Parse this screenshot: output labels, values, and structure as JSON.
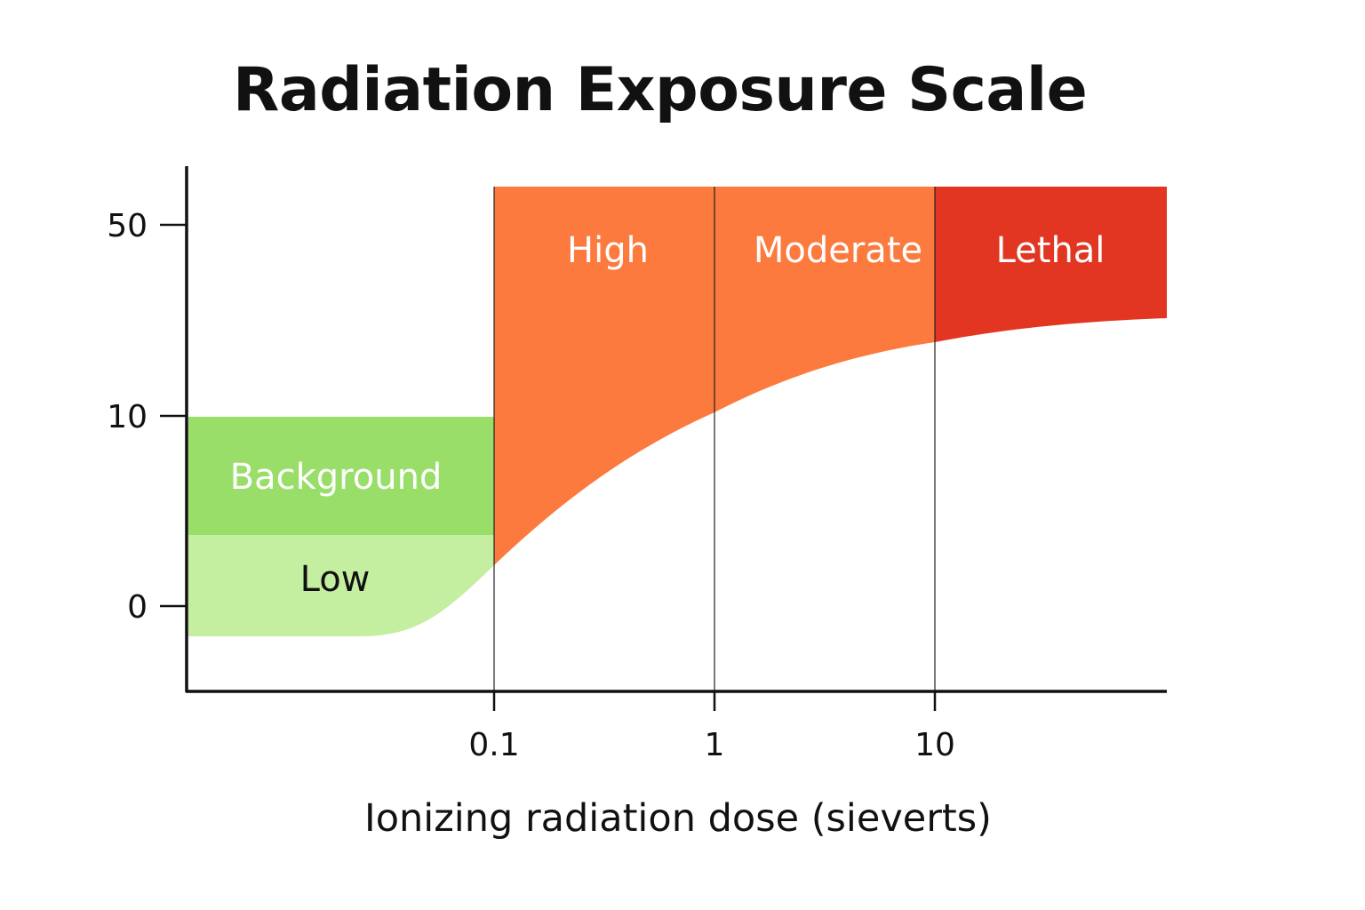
{
  "chart_data": {
    "type": "area",
    "title": "Radiation Exposure Scale",
    "xlabel": "Ionizing radiation dose (sieverts)",
    "ylabel": "",
    "x_scale": "log",
    "x_ticks": [
      "0.1",
      "1",
      "10"
    ],
    "y_ticks": [
      "0",
      "10",
      "50"
    ],
    "legend": "none",
    "grid": "vertical lines at x ticks",
    "zones": [
      {
        "label": "Low",
        "color": "#c4eea0",
        "label_color": "#111111"
      },
      {
        "label": "Background",
        "color": "#98de68",
        "label_color": "#ffffff"
      },
      {
        "label": "High",
        "color": "#fc7a3e",
        "label_color": "#ffffff"
      },
      {
        "label": "Moderate",
        "color": "#fc7a3e",
        "label_color": "#ffffff"
      },
      {
        "label": "Lethal",
        "color": "#e23622",
        "label_color": "#ffffff"
      }
    ]
  }
}
